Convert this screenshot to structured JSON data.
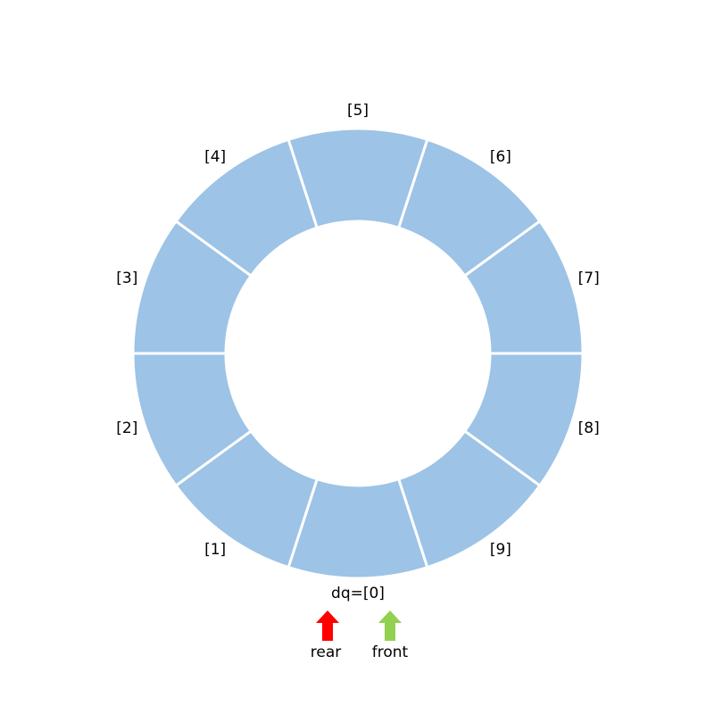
{
  "ring": {
    "slots": [
      "dq=[0]",
      "[1]",
      "[2]",
      "[3]",
      "[4]",
      "[5]",
      "[6]",
      "[7]",
      "[8]",
      "[9]"
    ]
  },
  "pointers": {
    "rear": "rear",
    "front": "front"
  }
}
